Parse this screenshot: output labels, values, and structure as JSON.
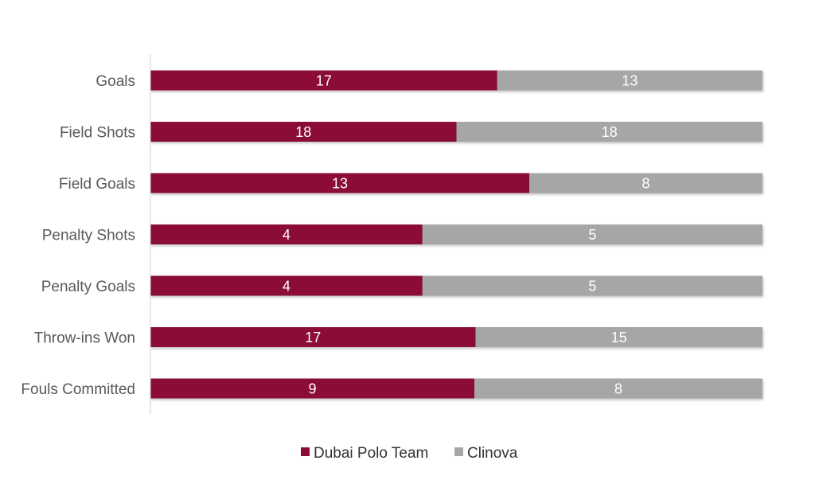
{
  "chart_data": {
    "type": "bar",
    "orientation": "horizontal",
    "stacking": "percent",
    "categories": [
      "Goals",
      "Field Shots",
      "Field Goals",
      "Penalty Shots",
      "Penalty Goals",
      "Throw-ins Won",
      "Fouls Committed"
    ],
    "series": [
      {
        "name": "Dubai Polo Team",
        "color": "#8B0A36",
        "values": [
          17,
          18,
          13,
          4,
          4,
          17,
          9
        ]
      },
      {
        "name": "Clinova",
        "color": "#A6A6A6",
        "values": [
          13,
          18,
          8,
          5,
          5,
          15,
          8
        ]
      }
    ],
    "data_labels": true,
    "legend_position": "bottom",
    "grid": false
  }
}
